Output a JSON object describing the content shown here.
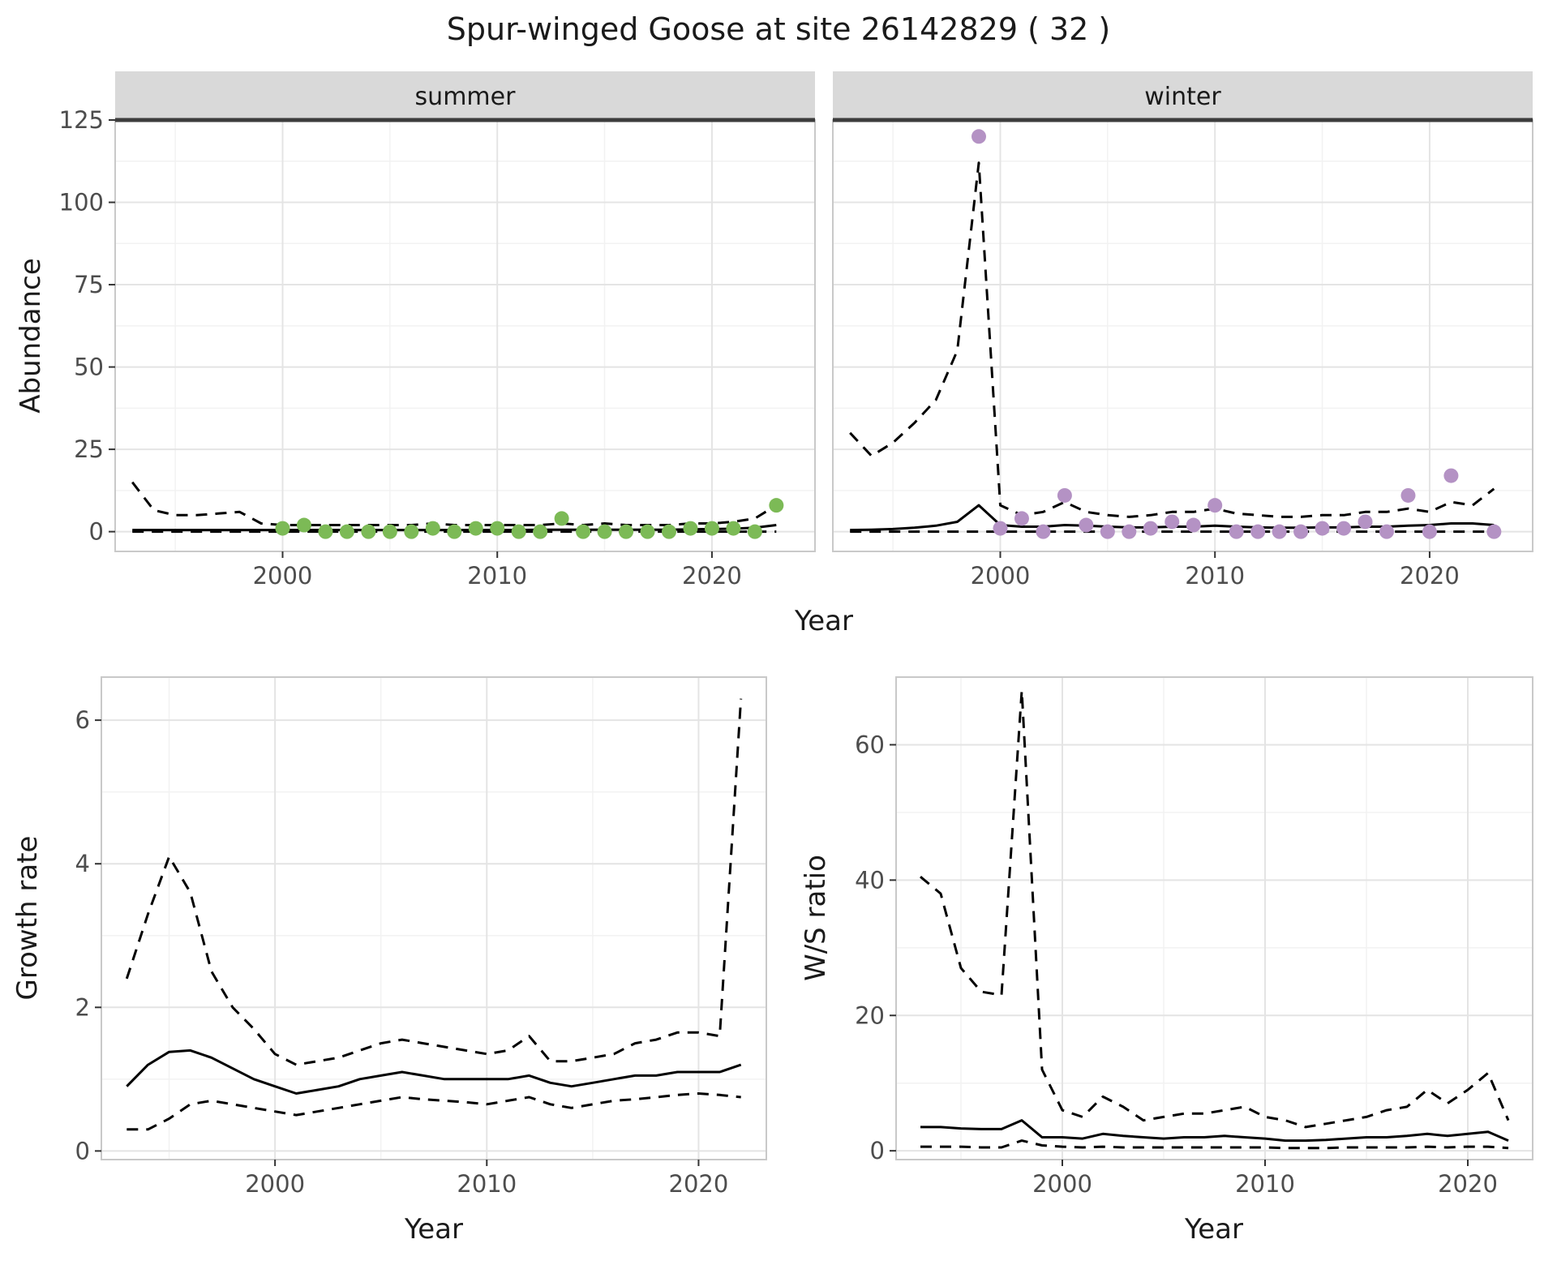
{
  "title": "Spur-winged Goose at site 26142829 ( 32 )",
  "axes": {
    "abundance_label": "Abundance",
    "year_label": "Year",
    "growth_label": "Growth rate",
    "ws_label": "W/S ratio"
  },
  "colors": {
    "summer_point": "#7CBA56",
    "winter_point": "#B492C4",
    "line": "#000000",
    "strip_bg": "#D9D9D9",
    "strip_text": "#1A1A1A",
    "strip_divider": "#3D3D3D",
    "grid_major": "#E4E4E4",
    "grid_minor": "#F2F2F2",
    "panel_border": "#C9C9C9",
    "axis_text": "#4D4D4D"
  },
  "chart_data": [
    {
      "name": "abundance-summer",
      "type": "line",
      "strip": "summer",
      "xlabel": "Year",
      "ylabel": "Abundance",
      "xlim": [
        1992.2,
        2024.8
      ],
      "ylim": [
        -6,
        125
      ],
      "xticks": [
        2000,
        2010,
        2020
      ],
      "yticks": [
        0,
        25,
        50,
        75,
        100,
        125
      ],
      "xminor": [
        1995,
        2005,
        2015
      ],
      "yminor": [
        12.5,
        37.5,
        62.5,
        87.5,
        112.5
      ],
      "show_yticklabels": true,
      "dark_top": true,
      "series": [
        {
          "name": "ci-upper",
          "kind": "line",
          "dashed": true,
          "x": [
            1993,
            1994,
            1995,
            1996,
            1997,
            1998,
            1999,
            2000,
            2001,
            2002,
            2003,
            2004,
            2005,
            2006,
            2007,
            2008,
            2009,
            2010,
            2011,
            2012,
            2013,
            2014,
            2015,
            2016,
            2017,
            2018,
            2019,
            2020,
            2021,
            2022,
            2023
          ],
          "y": [
            15,
            6.5,
            5,
            5,
            5.5,
            6,
            2.5,
            2,
            2,
            2,
            2,
            2,
            2,
            2,
            2.5,
            2,
            2,
            2,
            2,
            2,
            2.5,
            2,
            2.5,
            2,
            2,
            2,
            2.5,
            2.5,
            3,
            4,
            8
          ]
        },
        {
          "name": "ci-lower",
          "kind": "line",
          "dashed": true,
          "x": [
            1993,
            1994,
            1995,
            1996,
            1997,
            1998,
            1999,
            2000,
            2001,
            2002,
            2003,
            2004,
            2005,
            2006,
            2007,
            2008,
            2009,
            2010,
            2011,
            2012,
            2013,
            2014,
            2015,
            2016,
            2017,
            2018,
            2019,
            2020,
            2021,
            2022,
            2023
          ],
          "y": [
            0,
            0,
            0,
            0,
            0,
            0,
            0,
            0,
            0,
            0,
            0,
            0,
            0,
            0,
            0,
            0,
            0,
            0,
            0,
            0,
            0,
            0,
            0,
            0,
            0,
            0,
            0,
            0,
            0,
            0,
            0
          ]
        },
        {
          "name": "fit",
          "kind": "line",
          "dashed": false,
          "x": [
            1993,
            1994,
            1995,
            1996,
            1997,
            1998,
            1999,
            2000,
            2001,
            2002,
            2003,
            2004,
            2005,
            2006,
            2007,
            2008,
            2009,
            2010,
            2011,
            2012,
            2013,
            2014,
            2015,
            2016,
            2017,
            2018,
            2019,
            2020,
            2021,
            2022,
            2023
          ],
          "y": [
            0.5,
            0.5,
            0.5,
            0.5,
            0.5,
            0.5,
            0.5,
            0.5,
            0.5,
            0.5,
            0.5,
            0.5,
            0.5,
            0.5,
            0.5,
            0.5,
            0.5,
            0.5,
            0.5,
            0.6,
            0.6,
            0.6,
            0.6,
            0.6,
            0.6,
            0.6,
            0.7,
            0.8,
            0.9,
            1.2,
            2
          ]
        },
        {
          "name": "observed",
          "kind": "scatter",
          "color": "#7CBA56",
          "x": [
            2000,
            2001,
            2002,
            2003,
            2004,
            2005,
            2006,
            2007,
            2008,
            2009,
            2010,
            2011,
            2012,
            2013,
            2014,
            2015,
            2016,
            2017,
            2018,
            2019,
            2020,
            2021,
            2022,
            2023
          ],
          "y": [
            1,
            2,
            0,
            0,
            0,
            0,
            0,
            1,
            0,
            1,
            1,
            0,
            0,
            4,
            0,
            0,
            0,
            0,
            0,
            1,
            1,
            1,
            0,
            8
          ]
        }
      ]
    },
    {
      "name": "abundance-winter",
      "type": "line",
      "strip": "winter",
      "xlabel": "Year",
      "ylabel": "Abundance",
      "xlim": [
        1992.2,
        2024.8
      ],
      "ylim": [
        -6,
        125
      ],
      "xticks": [
        2000,
        2010,
        2020
      ],
      "yticks": [
        0,
        25,
        50,
        75,
        100,
        125
      ],
      "xminor": [
        1995,
        2005,
        2015
      ],
      "yminor": [
        12.5,
        37.5,
        62.5,
        87.5,
        112.5
      ],
      "show_yticklabels": false,
      "dark_top": true,
      "series": [
        {
          "name": "ci-upper",
          "kind": "line",
          "dashed": true,
          "x": [
            1993,
            1994,
            1995,
            1996,
            1997,
            1998,
            1999,
            2000,
            2001,
            2002,
            2003,
            2004,
            2005,
            2006,
            2007,
            2008,
            2009,
            2010,
            2011,
            2012,
            2013,
            2014,
            2015,
            2016,
            2017,
            2018,
            2019,
            2020,
            2021,
            2022,
            2023
          ],
          "y": [
            30,
            23,
            27,
            33,
            40,
            55,
            112,
            8,
            5,
            6,
            9,
            6,
            5,
            4.5,
            5,
            6,
            6,
            7,
            5.5,
            5,
            4.5,
            4.5,
            5,
            5,
            6,
            6,
            7,
            6,
            9,
            8,
            13
          ]
        },
        {
          "name": "ci-lower",
          "kind": "line",
          "dashed": true,
          "x": [
            1993,
            1994,
            1995,
            1996,
            1997,
            1998,
            1999,
            2000,
            2001,
            2002,
            2003,
            2004,
            2005,
            2006,
            2007,
            2008,
            2009,
            2010,
            2011,
            2012,
            2013,
            2014,
            2015,
            2016,
            2017,
            2018,
            2019,
            2020,
            2021,
            2022,
            2023
          ],
          "y": [
            0,
            0,
            0,
            0,
            0,
            0,
            0,
            0,
            0,
            0,
            0,
            0,
            0,
            0,
            0,
            0,
            0,
            0,
            0,
            0,
            0,
            0,
            0,
            0,
            0,
            0,
            0,
            0,
            0,
            0,
            0
          ]
        },
        {
          "name": "fit",
          "kind": "line",
          "dashed": false,
          "x": [
            1993,
            1994,
            1995,
            1996,
            1997,
            1998,
            1999,
            2000,
            2001,
            2002,
            2003,
            2004,
            2005,
            2006,
            2007,
            2008,
            2009,
            2010,
            2011,
            2012,
            2013,
            2014,
            2015,
            2016,
            2017,
            2018,
            2019,
            2020,
            2021,
            2022,
            2023
          ],
          "y": [
            0.5,
            0.6,
            0.8,
            1.2,
            1.8,
            3,
            8,
            2,
            1.5,
            1.5,
            2,
            1.8,
            1.5,
            1.3,
            1.3,
            1.5,
            1.5,
            1.8,
            1.5,
            1.3,
            1.2,
            1.2,
            1.3,
            1.3,
            1.5,
            1.5,
            1.8,
            2,
            2.5,
            2.5,
            2
          ]
        },
        {
          "name": "observed",
          "kind": "scatter",
          "color": "#B492C4",
          "x": [
            1999,
            2000,
            2001,
            2002,
            2003,
            2004,
            2005,
            2006,
            2007,
            2008,
            2009,
            2010,
            2011,
            2012,
            2013,
            2014,
            2015,
            2016,
            2017,
            2018,
            2019,
            2020,
            2021,
            2023
          ],
          "y": [
            120,
            1,
            4,
            0,
            11,
            2,
            0,
            0,
            1,
            3,
            2,
            8,
            0,
            0,
            0,
            0,
            1,
            1,
            3,
            0,
            11,
            0,
            17,
            0
          ]
        }
      ]
    },
    {
      "name": "growth-rate",
      "type": "line",
      "strip": null,
      "xlabel": "Year",
      "ylabel": "Growth rate",
      "xlim": [
        1991.8,
        2023.2
      ],
      "ylim": [
        -0.12,
        6.6
      ],
      "xticks": [
        2000,
        2010,
        2020
      ],
      "yticks": [
        0,
        2,
        4,
        6
      ],
      "xminor": [
        1995,
        2005,
        2015
      ],
      "yminor": [
        1,
        3,
        5
      ],
      "show_yticklabels": true,
      "dark_top": false,
      "series": [
        {
          "name": "ci-upper",
          "kind": "line",
          "dashed": true,
          "x": [
            1993,
            1994,
            1995,
            1996,
            1997,
            1998,
            1999,
            2000,
            2001,
            2002,
            2003,
            2004,
            2005,
            2006,
            2007,
            2008,
            2009,
            2010,
            2011,
            2012,
            2013,
            2014,
            2015,
            2016,
            2017,
            2018,
            2019,
            2020,
            2021,
            2022
          ],
          "y": [
            2.4,
            3.3,
            4.1,
            3.6,
            2.5,
            2.0,
            1.7,
            1.35,
            1.2,
            1.25,
            1.3,
            1.4,
            1.5,
            1.55,
            1.5,
            1.45,
            1.4,
            1.35,
            1.4,
            1.6,
            1.25,
            1.25,
            1.3,
            1.35,
            1.5,
            1.55,
            1.65,
            1.65,
            1.6,
            6.3
          ]
        },
        {
          "name": "ci-lower",
          "kind": "line",
          "dashed": true,
          "x": [
            1993,
            1994,
            1995,
            1996,
            1997,
            1998,
            1999,
            2000,
            2001,
            2002,
            2003,
            2004,
            2005,
            2006,
            2007,
            2008,
            2009,
            2010,
            2011,
            2012,
            2013,
            2014,
            2015,
            2016,
            2017,
            2018,
            2019,
            2020,
            2021,
            2022
          ],
          "y": [
            0.3,
            0.3,
            0.45,
            0.65,
            0.7,
            0.65,
            0.6,
            0.55,
            0.5,
            0.55,
            0.6,
            0.65,
            0.7,
            0.75,
            0.72,
            0.7,
            0.68,
            0.65,
            0.7,
            0.75,
            0.65,
            0.6,
            0.65,
            0.7,
            0.72,
            0.75,
            0.78,
            0.8,
            0.78,
            0.75
          ]
        },
        {
          "name": "fit",
          "kind": "line",
          "dashed": false,
          "x": [
            1993,
            1994,
            1995,
            1996,
            1997,
            1998,
            1999,
            2000,
            2001,
            2002,
            2003,
            2004,
            2005,
            2006,
            2007,
            2008,
            2009,
            2010,
            2011,
            2012,
            2013,
            2014,
            2015,
            2016,
            2017,
            2018,
            2019,
            2020,
            2021,
            2022
          ],
          "y": [
            0.9,
            1.2,
            1.38,
            1.4,
            1.3,
            1.15,
            1.0,
            0.9,
            0.8,
            0.85,
            0.9,
            1.0,
            1.05,
            1.1,
            1.05,
            1.0,
            1.0,
            1.0,
            1.0,
            1.05,
            0.95,
            0.9,
            0.95,
            1.0,
            1.05,
            1.05,
            1.1,
            1.1,
            1.1,
            1.2
          ]
        }
      ]
    },
    {
      "name": "ws-ratio",
      "type": "line",
      "strip": null,
      "xlabel": "Year",
      "ylabel": "W/S ratio",
      "xlim": [
        1991.8,
        2023.2
      ],
      "ylim": [
        -1.3,
        70
      ],
      "xticks": [
        2000,
        2010,
        2020
      ],
      "yticks": [
        0,
        20,
        40,
        60
      ],
      "xminor": [
        1995,
        2005,
        2015
      ],
      "yminor": [
        10,
        30,
        50
      ],
      "show_yticklabels": true,
      "dark_top": false,
      "series": [
        {
          "name": "ci-upper",
          "kind": "line",
          "dashed": true,
          "x": [
            1993,
            1994,
            1995,
            1996,
            1997,
            1998,
            1999,
            2000,
            2001,
            2002,
            2003,
            2004,
            2005,
            2006,
            2007,
            2008,
            2009,
            2010,
            2011,
            2012,
            2013,
            2014,
            2015,
            2016,
            2017,
            2018,
            2019,
            2020,
            2021,
            2022
          ],
          "y": [
            40.5,
            38,
            27,
            23.5,
            23,
            68,
            12,
            6,
            5,
            8,
            6.5,
            4.5,
            5,
            5.5,
            5.5,
            6,
            6.5,
            5,
            4.5,
            3.5,
            4,
            4.5,
            5,
            6,
            6.5,
            9,
            7,
            9,
            11.5,
            4.5
          ]
        },
        {
          "name": "ci-lower",
          "kind": "line",
          "dashed": true,
          "x": [
            1993,
            1994,
            1995,
            1996,
            1997,
            1998,
            1999,
            2000,
            2001,
            2002,
            2003,
            2004,
            2005,
            2006,
            2007,
            2008,
            2009,
            2010,
            2011,
            2012,
            2013,
            2014,
            2015,
            2016,
            2017,
            2018,
            2019,
            2020,
            2021,
            2022
          ],
          "y": [
            0.6,
            0.6,
            0.6,
            0.5,
            0.5,
            1.5,
            0.8,
            0.6,
            0.5,
            0.6,
            0.5,
            0.5,
            0.5,
            0.5,
            0.5,
            0.5,
            0.5,
            0.5,
            0.4,
            0.4,
            0.4,
            0.5,
            0.5,
            0.5,
            0.5,
            0.6,
            0.5,
            0.6,
            0.6,
            0.4
          ]
        },
        {
          "name": "fit",
          "kind": "line",
          "dashed": false,
          "x": [
            1993,
            1994,
            1995,
            1996,
            1997,
            1998,
            1999,
            2000,
            2001,
            2002,
            2003,
            2004,
            2005,
            2006,
            2007,
            2008,
            2009,
            2010,
            2011,
            2012,
            2013,
            2014,
            2015,
            2016,
            2017,
            2018,
            2019,
            2020,
            2021,
            2022
          ],
          "y": [
            3.5,
            3.5,
            3.3,
            3.2,
            3.2,
            4.5,
            2.0,
            2.0,
            1.8,
            2.5,
            2.2,
            2.0,
            1.8,
            2.0,
            2.0,
            2.2,
            2.0,
            1.8,
            1.5,
            1.5,
            1.6,
            1.8,
            2.0,
            2.0,
            2.2,
            2.5,
            2.2,
            2.5,
            2.8,
            1.5
          ]
        }
      ]
    }
  ]
}
